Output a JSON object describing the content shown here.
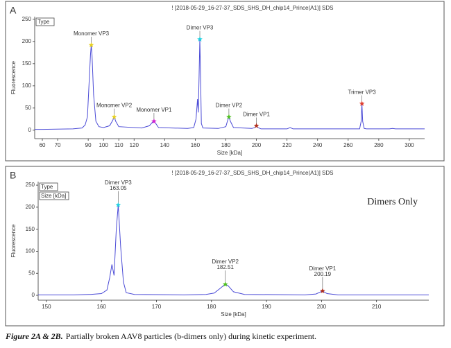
{
  "chart_data": [
    {
      "type": "line",
      "panel": "A",
      "title": "! [2018-05-29_16-27-37_SDS_SHS_DH_chip14_Prince(A1)] SDS",
      "legend_boxes": [
        "Type"
      ],
      "ylabel": "Fluorescence",
      "xlabel": "Size [kDa]",
      "xlim": [
        55,
        310
      ],
      "xticks": [
        60,
        70,
        90,
        100,
        110,
        120,
        140,
        160,
        180,
        200,
        220,
        240,
        260,
        280,
        300
      ],
      "ylim": [
        -19,
        256
      ],
      "yticks": [
        0,
        50,
        100,
        150,
        200,
        250
      ],
      "series": [
        {
          "color": "#4a4ad6",
          "x": [
            55,
            60,
            80,
            86,
            88,
            89.5,
            90.5,
            91.5,
            92,
            92.5,
            93.5,
            95,
            97,
            100,
            104,
            106,
            107,
            108,
            110,
            125,
            130,
            132,
            133,
            134,
            136,
            155,
            159,
            160.5,
            161.5,
            162,
            162.5,
            163,
            163.5,
            164,
            165,
            175,
            180,
            181,
            182,
            183,
            185,
            197,
            199,
            200,
            201,
            203,
            220,
            222,
            224,
            265,
            267.5,
            268.5,
            269,
            269.5,
            270.5,
            272,
            287,
            289,
            291,
            310
          ],
          "values": [
            2,
            2,
            3,
            5,
            12,
            30,
            100,
            170,
            192,
            170,
            80,
            20,
            8,
            6,
            10,
            22,
            30,
            20,
            8,
            5,
            10,
            18,
            20,
            16,
            6,
            4,
            6,
            25,
            70,
            40,
            120,
            205,
            120,
            15,
            5,
            4,
            8,
            20,
            30,
            20,
            6,
            4,
            6,
            10,
            6,
            3,
            3,
            6,
            3,
            3,
            3,
            20,
            60,
            20,
            4,
            3,
            3,
            4,
            3,
            3
          ]
        }
      ],
      "annotations": [
        {
          "label": "Monomer VP3",
          "x": 92,
          "y": 192,
          "color": "#e6d020"
        },
        {
          "label": "Monomer VP2",
          "x": 107,
          "y": 30,
          "color": "#e6d020"
        },
        {
          "label": "Monomer VP1",
          "x": 133,
          "y": 20,
          "color": "#d020d0"
        },
        {
          "label": "Dimer VP3",
          "x": 163,
          "y": 205,
          "color": "#20d0e0"
        },
        {
          "label": "Dimer VP2",
          "x": 182,
          "y": 30,
          "color": "#50c020"
        },
        {
          "label": "Dimer VP1",
          "x": 200,
          "y": 10,
          "color": "#b03020"
        },
        {
          "label": "Trimer VP3",
          "x": 269,
          "y": 60,
          "color": "#e04030"
        }
      ]
    },
    {
      "type": "line",
      "panel": "B",
      "title": "! [2018-05-29_16-27-37_SDS_SHS_DH_chip14_Prince(A1)] SDS",
      "legend_boxes": [
        "Type",
        "Size [kDa]"
      ],
      "ylabel": "Fluorescence",
      "xlabel": "Size [kDa]",
      "note": "Dimers Only",
      "xlim": [
        148.5,
        219.5
      ],
      "xticks": [
        150,
        160,
        170,
        180,
        190,
        200,
        210
      ],
      "ylim": [
        -11,
        258
      ],
      "yticks": [
        0,
        50,
        100,
        150,
        200,
        250
      ],
      "series": [
        {
          "color": "#4a4ad6",
          "x": [
            148.5,
            155,
            158,
            160,
            161,
            161.5,
            161.9,
            162.3,
            162.7,
            163.05,
            163.5,
            164,
            164.5,
            166,
            175,
            179,
            180.5,
            181.5,
            182,
            182.51,
            183,
            184,
            186,
            197,
            199,
            200.19,
            201,
            203,
            219.5
          ],
          "values": [
            1,
            1,
            2,
            4,
            12,
            40,
            70,
            45,
            150,
            205,
            110,
            30,
            6,
            2,
            1,
            2,
            5,
            15,
            20,
            25,
            22,
            8,
            2,
            1,
            3,
            10,
            4,
            1,
            1
          ]
        }
      ],
      "annotations": [
        {
          "label": "Dimer VP3",
          "x": 163.05,
          "y": 205,
          "color": "#20d0e0"
        },
        {
          "label": "Dimer VP2",
          "x": 182.51,
          "y": 25,
          "color": "#50c020"
        },
        {
          "label": "Dimer VP1",
          "x": 200.19,
          "y": 10,
          "color": "#b03020"
        }
      ]
    }
  ],
  "caption": {
    "lead": "Figure 2A & 2B.",
    "text": "Partially broken AAV8 particles (b-dimers only) during kinetic experiment."
  }
}
